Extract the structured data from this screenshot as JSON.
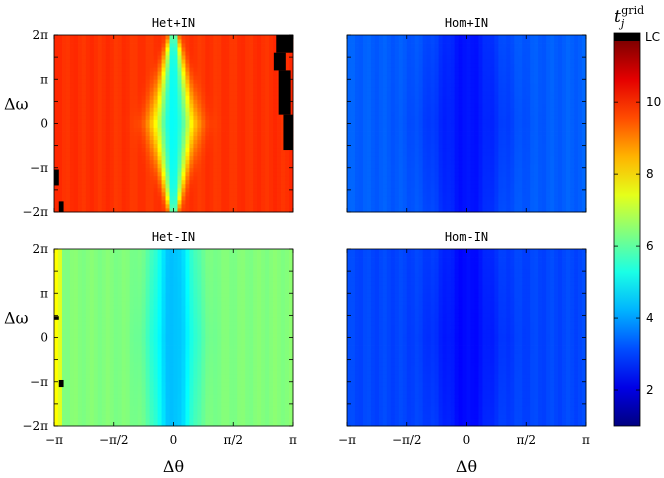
{
  "chart_data": [
    {
      "type": "heatmap",
      "title": "Het+IN",
      "x_range": [
        "-π",
        "π"
      ],
      "y_range": [
        "-2π",
        "2π"
      ],
      "value_model": {
        "base": 9.8,
        "center_value": 5.0,
        "ridge_width": 0.06,
        "ridge_taper": 0.9,
        "edge_rise": 0.3
      },
      "lc_regions": [
        {
          "x": [
            0.93,
            1.0
          ],
          "y": [
            0.9,
            1.0
          ]
        },
        {
          "x": [
            0.92,
            0.97
          ],
          "y": [
            0.8,
            0.9
          ]
        },
        {
          "x": [
            0.94,
            0.99
          ],
          "y": [
            0.55,
            0.8
          ]
        },
        {
          "x": [
            0.96,
            1.0
          ],
          "y": [
            0.35,
            0.55
          ]
        },
        {
          "x": [
            0.0,
            0.02
          ],
          "y": [
            0.15,
            0.24
          ]
        },
        {
          "x": [
            0.02,
            0.04
          ],
          "y": [
            0.0,
            0.06
          ]
        }
      ]
    },
    {
      "type": "heatmap",
      "title": "Hom+IN",
      "x_range": [
        "-π",
        "π"
      ],
      "y_range": [
        "-2π",
        "2π"
      ],
      "value_model": {
        "base": 3.2,
        "center_value": 2.5,
        "ridge_width": 0.12,
        "ridge_taper": 0.3,
        "edge_rise": 0.5
      },
      "lc_regions": []
    },
    {
      "type": "heatmap",
      "title": "Het-IN",
      "x_range": [
        "-π",
        "π"
      ],
      "y_range": [
        "-2π",
        "2π"
      ],
      "value_model": {
        "base": 6.3,
        "center_value": 4.3,
        "ridge_width": 0.07,
        "ridge_taper": 0.2,
        "edge_rise": 0.4,
        "left_edge_value": 7.0
      },
      "lc_regions": [
        {
          "x": [
            0.0,
            0.02
          ],
          "y": [
            0.6,
            0.62
          ]
        },
        {
          "x": [
            0.02,
            0.04
          ],
          "y": [
            0.22,
            0.26
          ]
        }
      ]
    },
    {
      "type": "heatmap",
      "title": "Hom-IN",
      "x_range": [
        "-π",
        "π"
      ],
      "y_range": [
        "-2π",
        "2π"
      ],
      "value_model": {
        "base": 3.0,
        "center_value": 2.4,
        "ridge_width": 0.1,
        "ridge_taper": 0.3,
        "edge_rise": 0.3
      },
      "lc_regions": []
    }
  ],
  "axes": {
    "xlabel": "Δθ",
    "ylabel": "Δω",
    "xticks": [
      "−π",
      "−π/2",
      "0",
      "π/2",
      "π"
    ],
    "yticks": [
      "2π",
      "π",
      "0",
      "−π",
      "−2π"
    ]
  },
  "colorbar": {
    "label_main": "t",
    "label_sub": "j",
    "label_sup": "grid",
    "range": [
      1,
      11.7
    ],
    "ticks": [
      "2",
      "4",
      "6",
      "8",
      "10"
    ],
    "tick_values": [
      2,
      4,
      6,
      8,
      10
    ],
    "top_label": "LC",
    "colormap": "jet",
    "lc_color": "#000000"
  }
}
